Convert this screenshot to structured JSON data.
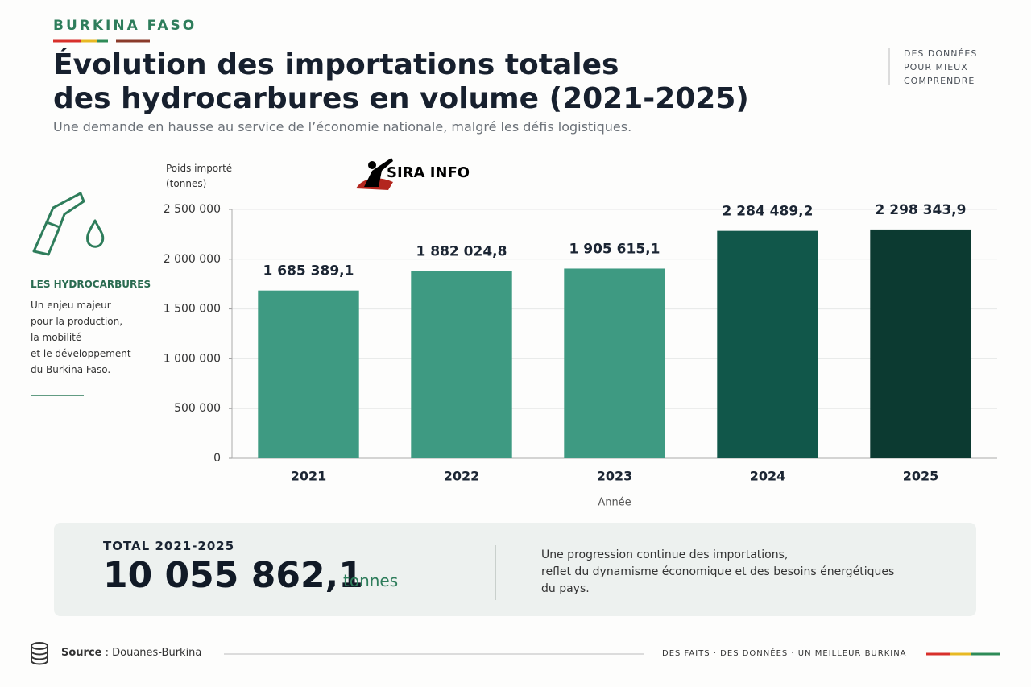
{
  "header": {
    "brand": "BURKINA FASO",
    "title_lines": [
      "Évolution des importations totales",
      "des hydrocarbures en volume (2021-2025)"
    ],
    "subtitle": "Une demande en hausse au service de l’économie nationale, malgré les défis logistiques.",
    "tagline_lines": [
      "DES DONNÉES",
      "POUR MIEUX",
      "COMPRENDRE"
    ]
  },
  "watermark": "SIRA INFO",
  "sidebar": {
    "heading": "LES HYDROCARBURES",
    "lines": [
      "Un enjeu majeur",
      "pour la production,",
      "la mobilité",
      "et le développement",
      "du Burkina Faso."
    ]
  },
  "chart_data": {
    "type": "bar",
    "ylabel": "Poids importé (tonnes)",
    "xlabel": "Année",
    "categories": [
      "2021",
      "2022",
      "2023",
      "2024",
      "2025"
    ],
    "values": [
      1685389.1,
      1882024.8,
      1905615.1,
      2284489.2,
      2298343.9
    ],
    "value_labels": [
      "1 685 389,1",
      "1 882 024,8",
      "1 905 615,1",
      "2 284 489,2",
      "2 298 343,9"
    ],
    "colors": [
      "#3e9a82",
      "#3e9a82",
      "#3e9a82",
      "#11574a",
      "#0c3a31"
    ],
    "ylim": [
      0,
      2500000
    ],
    "yticks": [
      0,
      {
        "value": 500000,
        "label": "500 000"
      },
      {
        "value": 1000000,
        "label": "1 000 000"
      },
      {
        "value": 1500000,
        "label": "1 500 000"
      },
      {
        "value": 2000000,
        "label": "2 000 000"
      },
      {
        "value": 2500000,
        "label": "2 500 000"
      }
    ],
    "grid": true
  },
  "total": {
    "label": "TOTAL 2021-2025",
    "value": "10 055 862,1",
    "unit": "tonnes",
    "lines": [
      "Une progression continue des importations,",
      "reflet du dynamisme économique et des besoins énergétiques",
      "du pays."
    ]
  },
  "footer": {
    "source_label": "Source",
    "source": ": Douanes-Burkina",
    "slogans": [
      "DES FAITS",
      "DES DONNÉES",
      "UN MEILLEUR BURKINA"
    ]
  }
}
